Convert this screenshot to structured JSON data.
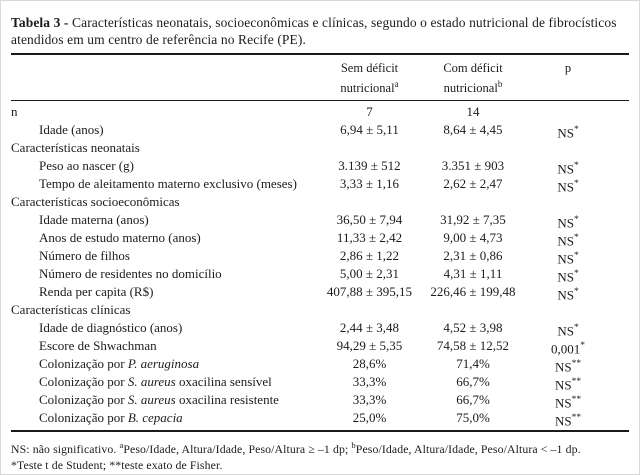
{
  "title": {
    "label": "Tabela 3 -",
    "text": "Características neonatais, socioeconômicas e clínicas, segundo o estado nutricional de fibrocísticos atendidos em um centro de referência no Recife (PE)."
  },
  "table": {
    "header": {
      "sem": {
        "line1": "Sem déficit",
        "line2": "nutricional",
        "sup": "a"
      },
      "com": {
        "line1": "Com déficit",
        "line2": "nutricional",
        "sup": "b"
      },
      "p": "p"
    },
    "rows": [
      {
        "label": [
          {
            "t": "n"
          }
        ],
        "indent": false,
        "v1": "7",
        "v2": "14",
        "p": "",
        "psup": ""
      },
      {
        "label": [
          {
            "t": "Idade (anos)"
          }
        ],
        "indent": true,
        "v1": "6,94 ± 5,11",
        "v2": "8,64 ± 4,45",
        "p": "NS",
        "psup": "*"
      },
      {
        "section": true,
        "label": [
          {
            "t": "Características neonatais"
          }
        ]
      },
      {
        "label": [
          {
            "t": "Peso ao nascer (g)"
          }
        ],
        "indent": true,
        "v1": "3.139 ± 512",
        "v2": "3.351 ± 903",
        "p": "NS",
        "psup": "*"
      },
      {
        "label": [
          {
            "t": "Tempo de aleitamento materno exclusivo (meses)"
          }
        ],
        "indent": true,
        "v1": "3,33 ± 1,16",
        "v2": "2,62 ± 2,47",
        "p": "NS",
        "psup": "*"
      },
      {
        "section": true,
        "label": [
          {
            "t": "Características socioeconômicas"
          }
        ]
      },
      {
        "label": [
          {
            "t": "Idade materna (anos)"
          }
        ],
        "indent": true,
        "v1": "36,50 ± 7,94",
        "v2": "31,92 ± 7,35",
        "p": "NS",
        "psup": "*"
      },
      {
        "label": [
          {
            "t": "Anos de estudo materno (anos)"
          }
        ],
        "indent": true,
        "v1": "11,33 ± 2,42",
        "v2": "9,00 ± 4,73",
        "p": "NS",
        "psup": "*"
      },
      {
        "label": [
          {
            "t": "Número de filhos"
          }
        ],
        "indent": true,
        "v1": "2,86 ± 1,22",
        "v2": "2,31 ± 0,86",
        "p": "NS",
        "psup": "*"
      },
      {
        "label": [
          {
            "t": "Número de residentes no domicílio"
          }
        ],
        "indent": true,
        "v1": "5,00 ± 2,31",
        "v2": "4,31 ± 1,11",
        "p": "NS",
        "psup": "*"
      },
      {
        "label": [
          {
            "t": "Renda per capita (R$)"
          }
        ],
        "indent": true,
        "v1": "407,88 ± 395,15",
        "v2": "226,46 ± 199,48",
        "p": "NS",
        "psup": "*"
      },
      {
        "section": true,
        "label": [
          {
            "t": "Características clínicas"
          }
        ]
      },
      {
        "label": [
          {
            "t": "Idade de diagnóstico (anos)"
          }
        ],
        "indent": true,
        "v1": "2,44 ± 3,48",
        "v2": "4,52 ± 3,98",
        "p": "NS",
        "psup": "*"
      },
      {
        "label": [
          {
            "t": "Escore de Shwachman"
          }
        ],
        "indent": true,
        "v1": "94,29 ± 5,35",
        "v2": "74,58 ± 12,52",
        "p": "0,001",
        "psup": "*"
      },
      {
        "label": [
          {
            "t": "Colonização por "
          },
          {
            "t": "P. aeruginosa",
            "i": true
          }
        ],
        "indent": true,
        "v1": "28,6%",
        "v2": "71,4%",
        "p": "NS",
        "psup": "**"
      },
      {
        "label": [
          {
            "t": "Colonização por "
          },
          {
            "t": "S. aureus",
            "i": true
          },
          {
            "t": " oxacilina sensível"
          }
        ],
        "indent": true,
        "v1": "33,3%",
        "v2": "66,7%",
        "p": "NS",
        "psup": "**"
      },
      {
        "label": [
          {
            "t": "Colonização por "
          },
          {
            "t": "S. aureus",
            "i": true
          },
          {
            "t": " oxacilina resistente"
          }
        ],
        "indent": true,
        "v1": "33,3%",
        "v2": "66,7%",
        "p": "NS",
        "psup": "**"
      },
      {
        "label": [
          {
            "t": "Colonização por "
          },
          {
            "t": "B. cepacia",
            "i": true
          }
        ],
        "indent": true,
        "v1": "25,0%",
        "v2": "75,0%",
        "p": "NS",
        "psup": "**"
      }
    ]
  },
  "footnotes": {
    "line1": [
      {
        "t": "NS: não significativo. "
      },
      {
        "t": "a",
        "sup": true
      },
      {
        "t": "Peso/Idade, Altura/Idade, Peso/Altura ≥ –1 dp; "
      },
      {
        "t": "b",
        "sup": true
      },
      {
        "t": "Peso/Idade, Altura/Idade, Peso/Altura < –1 dp."
      }
    ],
    "line2": "*Teste t de Student; **teste exato de Fisher."
  }
}
